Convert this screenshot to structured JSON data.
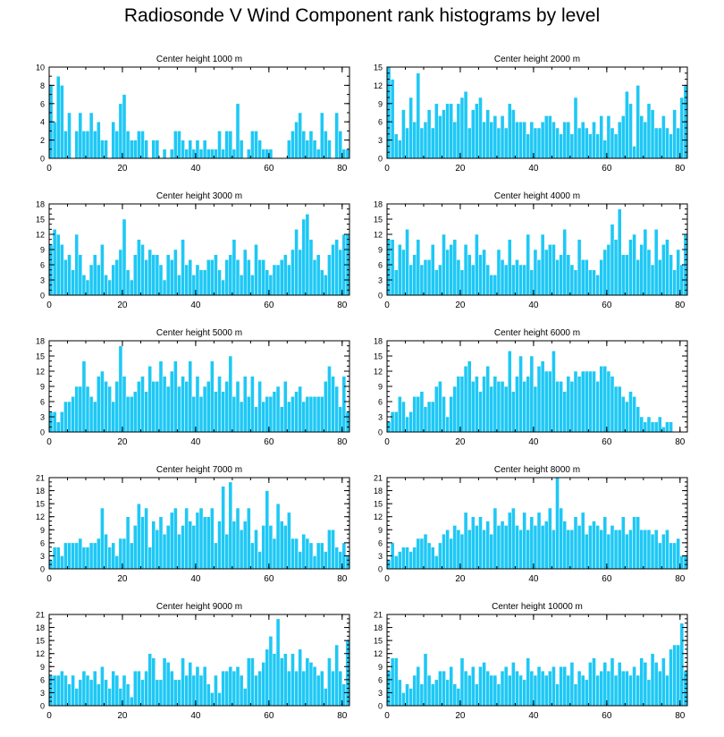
{
  "title": "Radiosonde V Wind Component rank histograms by level",
  "colors": {
    "bar": "#1ec8f5",
    "bar_edge": "#ffffff",
    "axis": "#000000"
  },
  "chart_data": [
    {
      "type": "bar",
      "title": "Center height 1000 m",
      "xlabel": "",
      "ylabel": "",
      "xlim": [
        0,
        82
      ],
      "ylim": [
        0,
        10
      ],
      "yticks": [
        0,
        2,
        4,
        6,
        8,
        10
      ],
      "xticks": [
        0,
        20,
        40,
        60,
        80
      ],
      "values": [
        8,
        4,
        9,
        8,
        3,
        5,
        0,
        3,
        5,
        3,
        3,
        5,
        3,
        4,
        2,
        2,
        0,
        4,
        3,
        6,
        7,
        3,
        2,
        2,
        3,
        3,
        2,
        0,
        2,
        2,
        0,
        1,
        0,
        1,
        3,
        3,
        2,
        1,
        2,
        1,
        2,
        1,
        2,
        1,
        1,
        1,
        3,
        1,
        3,
        3,
        1,
        6,
        2,
        0,
        1,
        3,
        3,
        2,
        1,
        1,
        1,
        0,
        0,
        0,
        0,
        2,
        3,
        4,
        5,
        3,
        2,
        3,
        2,
        1,
        5,
        3,
        2,
        0,
        5,
        3,
        1,
        1
      ]
    },
    {
      "type": "bar",
      "title": "Center height 2000 m",
      "xlabel": "",
      "ylabel": "",
      "xlim": [
        0,
        82
      ],
      "ylim": [
        0,
        15
      ],
      "yticks": [
        0,
        3,
        6,
        9,
        12,
        15
      ],
      "xticks": [
        0,
        20,
        40,
        60,
        80
      ],
      "values": [
        15,
        13,
        4,
        3,
        8,
        5,
        10,
        6,
        14,
        5,
        6,
        8,
        5,
        9,
        7,
        8,
        9,
        9,
        6,
        9,
        10,
        11,
        5,
        8,
        9,
        10,
        6,
        8,
        6,
        7,
        5,
        7,
        5,
        9,
        8,
        6,
        6,
        6,
        4,
        6,
        5,
        5,
        6,
        7,
        7,
        6,
        5,
        4,
        6,
        6,
        4,
        10,
        5,
        6,
        5,
        4,
        6,
        4,
        7,
        3,
        7,
        5,
        4,
        6,
        7,
        11,
        9,
        2,
        12,
        7,
        6,
        9,
        8,
        5,
        5,
        7,
        5,
        4,
        8,
        5,
        10,
        12
      ]
    },
    {
      "type": "bar",
      "title": "Center height 3000 m",
      "xlabel": "",
      "ylabel": "",
      "xlim": [
        0,
        82
      ],
      "ylim": [
        0,
        18
      ],
      "yticks": [
        0,
        3,
        6,
        9,
        12,
        15,
        18
      ],
      "xticks": [
        0,
        20,
        40,
        60,
        80
      ],
      "values": [
        10,
        13,
        12,
        10,
        7,
        8,
        5,
        12,
        8,
        4,
        3,
        6,
        8,
        6,
        10,
        4,
        3,
        6,
        7,
        9,
        15,
        5,
        3,
        8,
        11,
        10,
        7,
        9,
        8,
        8,
        6,
        3,
        8,
        7,
        9,
        4,
        11,
        6,
        7,
        4,
        6,
        5,
        5,
        7,
        7,
        8,
        5,
        3,
        7,
        8,
        11,
        7,
        4,
        9,
        7,
        4,
        10,
        7,
        7,
        5,
        4,
        6,
        6,
        7,
        8,
        6,
        9,
        13,
        9,
        15,
        16,
        11,
        7,
        8,
        5,
        4,
        8,
        10,
        11,
        9,
        12,
        12
      ]
    },
    {
      "type": "bar",
      "title": "Center height 4000 m",
      "xlabel": "",
      "ylabel": "",
      "xlim": [
        0,
        82
      ],
      "ylim": [
        0,
        18
      ],
      "yticks": [
        0,
        3,
        6,
        9,
        12,
        15,
        18
      ],
      "xticks": [
        0,
        20,
        40,
        60,
        80
      ],
      "values": [
        11,
        11,
        5,
        10,
        9,
        13,
        6,
        8,
        11,
        6,
        7,
        7,
        10,
        5,
        6,
        12,
        9,
        10,
        11,
        7,
        5,
        10,
        8,
        6,
        12,
        8,
        9,
        6,
        4,
        4,
        9,
        7,
        6,
        11,
        6,
        7,
        6,
        6,
        12,
        5,
        9,
        7,
        12,
        9,
        10,
        10,
        7,
        8,
        13,
        8,
        6,
        5,
        11,
        7,
        7,
        5,
        5,
        4,
        7,
        9,
        10,
        14,
        11,
        17,
        8,
        8,
        11,
        12,
        7,
        10,
        13,
        9,
        6,
        13,
        7,
        10,
        11,
        8,
        5,
        9,
        6,
        12
      ]
    },
    {
      "type": "bar",
      "title": "Center height 5000 m",
      "xlabel": "",
      "ylabel": "",
      "xlim": [
        0,
        82
      ],
      "ylim": [
        0,
        18
      ],
      "yticks": [
        0,
        3,
        6,
        9,
        12,
        15,
        18
      ],
      "xticks": [
        0,
        20,
        40,
        60,
        80
      ],
      "values": [
        4,
        4,
        2,
        4,
        6,
        6,
        7,
        9,
        9,
        14,
        9,
        7,
        6,
        11,
        12,
        10,
        9,
        6,
        10,
        17,
        11,
        7,
        7,
        8,
        10,
        11,
        8,
        13,
        10,
        10,
        14,
        11,
        9,
        12,
        14,
        9,
        11,
        10,
        14,
        7,
        11,
        7,
        9,
        10,
        14,
        8,
        11,
        8,
        10,
        15,
        7,
        10,
        6,
        11,
        7,
        11,
        5,
        10,
        6,
        7,
        7,
        8,
        9,
        5,
        10,
        6,
        7,
        8,
        9,
        6,
        7,
        7,
        7,
        7,
        7,
        10,
        13,
        11,
        9,
        5,
        11,
        4
      ]
    },
    {
      "type": "bar",
      "title": "Center height 6000 m",
      "xlabel": "",
      "ylabel": "",
      "xlim": [
        0,
        82
      ],
      "ylim": [
        0,
        18
      ],
      "yticks": [
        0,
        3,
        6,
        9,
        12,
        15,
        18
      ],
      "xticks": [
        0,
        20,
        40,
        60,
        80
      ],
      "values": [
        2,
        4,
        4,
        7,
        6,
        3,
        4,
        7,
        7,
        8,
        5,
        6,
        6,
        9,
        10,
        7,
        3,
        7,
        9,
        11,
        11,
        13,
        14,
        10,
        11,
        8,
        11,
        13,
        9,
        11,
        10,
        10,
        9,
        16,
        8,
        11,
        15,
        10,
        11,
        15,
        9,
        13,
        14,
        12,
        12,
        16,
        10,
        10,
        8,
        11,
        10,
        12,
        11,
        12,
        12,
        12,
        12,
        10,
        13,
        13,
        12,
        11,
        9,
        9,
        7,
        6,
        8,
        7,
        5,
        3,
        2,
        3,
        2,
        2,
        3,
        1,
        2,
        2
      ]
    },
    {
      "type": "bar",
      "title": "Center height 7000 m",
      "xlabel": "",
      "ylabel": "",
      "xlim": [
        0,
        82
      ],
      "ylim": [
        0,
        21
      ],
      "yticks": [
        0,
        3,
        6,
        9,
        12,
        15,
        18,
        21
      ],
      "xticks": [
        0,
        20,
        40,
        60,
        80
      ],
      "values": [
        2,
        5,
        5,
        3,
        6,
        6,
        6,
        6,
        7,
        5,
        5,
        6,
        6,
        7,
        14,
        8,
        5,
        6,
        3,
        7,
        7,
        12,
        6,
        10,
        15,
        12,
        14,
        5,
        11,
        9,
        12,
        8,
        10,
        13,
        14,
        8,
        10,
        14,
        11,
        10,
        13,
        14,
        12,
        12,
        14,
        6,
        11,
        19,
        8,
        20,
        11,
        14,
        9,
        11,
        14,
        6,
        9,
        4,
        10,
        18,
        10,
        7,
        15,
        11,
        10,
        13,
        7,
        7,
        4,
        8,
        7,
        6,
        3,
        6,
        6,
        4,
        9,
        9,
        5,
        4,
        6,
        3
      ]
    },
    {
      "type": "bar",
      "title": "Center height 8000 m",
      "xlabel": "",
      "ylabel": "",
      "xlim": [
        0,
        82
      ],
      "ylim": [
        0,
        21
      ],
      "yticks": [
        0,
        3,
        6,
        9,
        12,
        15,
        18,
        21
      ],
      "xticks": [
        0,
        20,
        40,
        60,
        80
      ],
      "values": [
        2,
        6,
        3,
        4,
        5,
        5,
        4,
        5,
        7,
        7,
        8,
        6,
        5,
        3,
        6,
        8,
        9,
        7,
        10,
        9,
        8,
        13,
        9,
        12,
        10,
        12,
        9,
        11,
        8,
        14,
        10,
        11,
        10,
        13,
        14,
        10,
        9,
        13,
        9,
        12,
        10,
        13,
        10,
        11,
        14,
        9,
        21,
        14,
        11,
        9,
        9,
        12,
        10,
        13,
        8,
        10,
        11,
        10,
        9,
        12,
        8,
        10,
        9,
        9,
        12,
        8,
        9,
        12,
        12,
        9,
        9,
        9,
        8,
        9,
        6,
        8,
        9,
        6,
        6,
        7,
        3,
        3
      ]
    },
    {
      "type": "bar",
      "title": "Center height 9000 m",
      "xlabel": "",
      "ylabel": "",
      "xlim": [
        0,
        82
      ],
      "ylim": [
        0,
        21
      ],
      "yticks": [
        0,
        3,
        6,
        9,
        12,
        15,
        18,
        21
      ],
      "xticks": [
        0,
        20,
        40,
        60,
        80
      ],
      "values": [
        7,
        7,
        7,
        8,
        7,
        5,
        7,
        4,
        6,
        8,
        7,
        6,
        8,
        5,
        9,
        6,
        4,
        8,
        7,
        4,
        7,
        5,
        2,
        8,
        8,
        6,
        8,
        12,
        11,
        6,
        6,
        11,
        10,
        8,
        6,
        6,
        11,
        7,
        10,
        7,
        9,
        7,
        9,
        5,
        3,
        7,
        3,
        8,
        8,
        9,
        8,
        9,
        7,
        4,
        11,
        11,
        7,
        8,
        10,
        13,
        16,
        12,
        20,
        11,
        12,
        8,
        12,
        8,
        13,
        8,
        11,
        10,
        9,
        7,
        8,
        4,
        11,
        8,
        14,
        8,
        5,
        15
      ]
    },
    {
      "type": "bar",
      "title": "Center height 10000 m",
      "xlabel": "",
      "ylabel": "",
      "xlim": [
        0,
        82
      ],
      "ylim": [
        0,
        21
      ],
      "yticks": [
        0,
        3,
        6,
        9,
        12,
        15,
        18,
        21
      ],
      "xticks": [
        0,
        20,
        40,
        60,
        80
      ],
      "values": [
        8,
        11,
        11,
        6,
        3,
        5,
        4,
        7,
        9,
        5,
        12,
        7,
        5,
        6,
        8,
        8,
        6,
        9,
        5,
        4,
        11,
        8,
        7,
        9,
        5,
        9,
        10,
        8,
        7,
        7,
        5,
        8,
        9,
        7,
        10,
        8,
        7,
        6,
        11,
        8,
        7,
        9,
        8,
        7,
        8,
        9,
        5,
        9,
        9,
        7,
        10,
        5,
        8,
        7,
        6,
        10,
        11,
        7,
        8,
        10,
        8,
        11,
        7,
        10,
        8,
        8,
        7,
        9,
        7,
        11,
        10,
        6,
        12,
        10,
        8,
        11,
        7,
        13,
        14,
        14,
        19,
        8
      ]
    }
  ]
}
